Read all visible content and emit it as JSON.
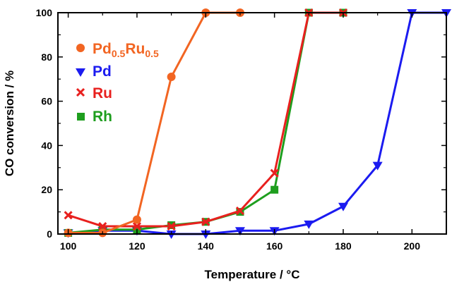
{
  "chart_data": {
    "type": "line",
    "title": "",
    "xlabel": "Temperature / °C",
    "ylabel": "CO conversion / %",
    "xlim": [
      97,
      210
    ],
    "ylim": [
      0,
      100
    ],
    "xticks": [
      100,
      120,
      140,
      160,
      180,
      200
    ],
    "yticks": [
      0,
      20,
      40,
      60,
      80,
      100
    ],
    "grid": false,
    "legend_position": "top-left",
    "series": [
      {
        "name": "Pd0.5Ru0.5",
        "legend_main": "Pd",
        "legend_sub1": "0.5",
        "legend_mid": "Ru",
        "legend_sub2": "0.5",
        "color": "#f26522",
        "marker": "circle",
        "x": [
          100,
          110,
          120,
          130,
          140,
          150
        ],
        "y": [
          0.5,
          0.5,
          6.5,
          71,
          100,
          100
        ]
      },
      {
        "name": "Pd",
        "color": "#1b1bf0",
        "marker": "triangle-down",
        "x": [
          100,
          110,
          120,
          130,
          140,
          150,
          160,
          170,
          180,
          190,
          200,
          210
        ],
        "y": [
          0.5,
          1.5,
          1.5,
          0,
          0,
          1.5,
          1.5,
          4.5,
          12.5,
          31,
          100,
          100
        ]
      },
      {
        "name": "Ru",
        "color": "#e8201e",
        "marker": "cross",
        "x": [
          100,
          110,
          120,
          130,
          140,
          150,
          160,
          170,
          180
        ],
        "y": [
          8.5,
          3.5,
          3.5,
          3.5,
          5.5,
          10.5,
          27.5,
          100,
          100
        ]
      },
      {
        "name": "Rh",
        "color": "#1e9e1e",
        "marker": "square",
        "x": [
          100,
          110,
          120,
          130,
          140,
          150,
          160,
          170,
          180
        ],
        "y": [
          0.5,
          2,
          2,
          4,
          5.5,
          10,
          20,
          100,
          100
        ]
      }
    ]
  }
}
